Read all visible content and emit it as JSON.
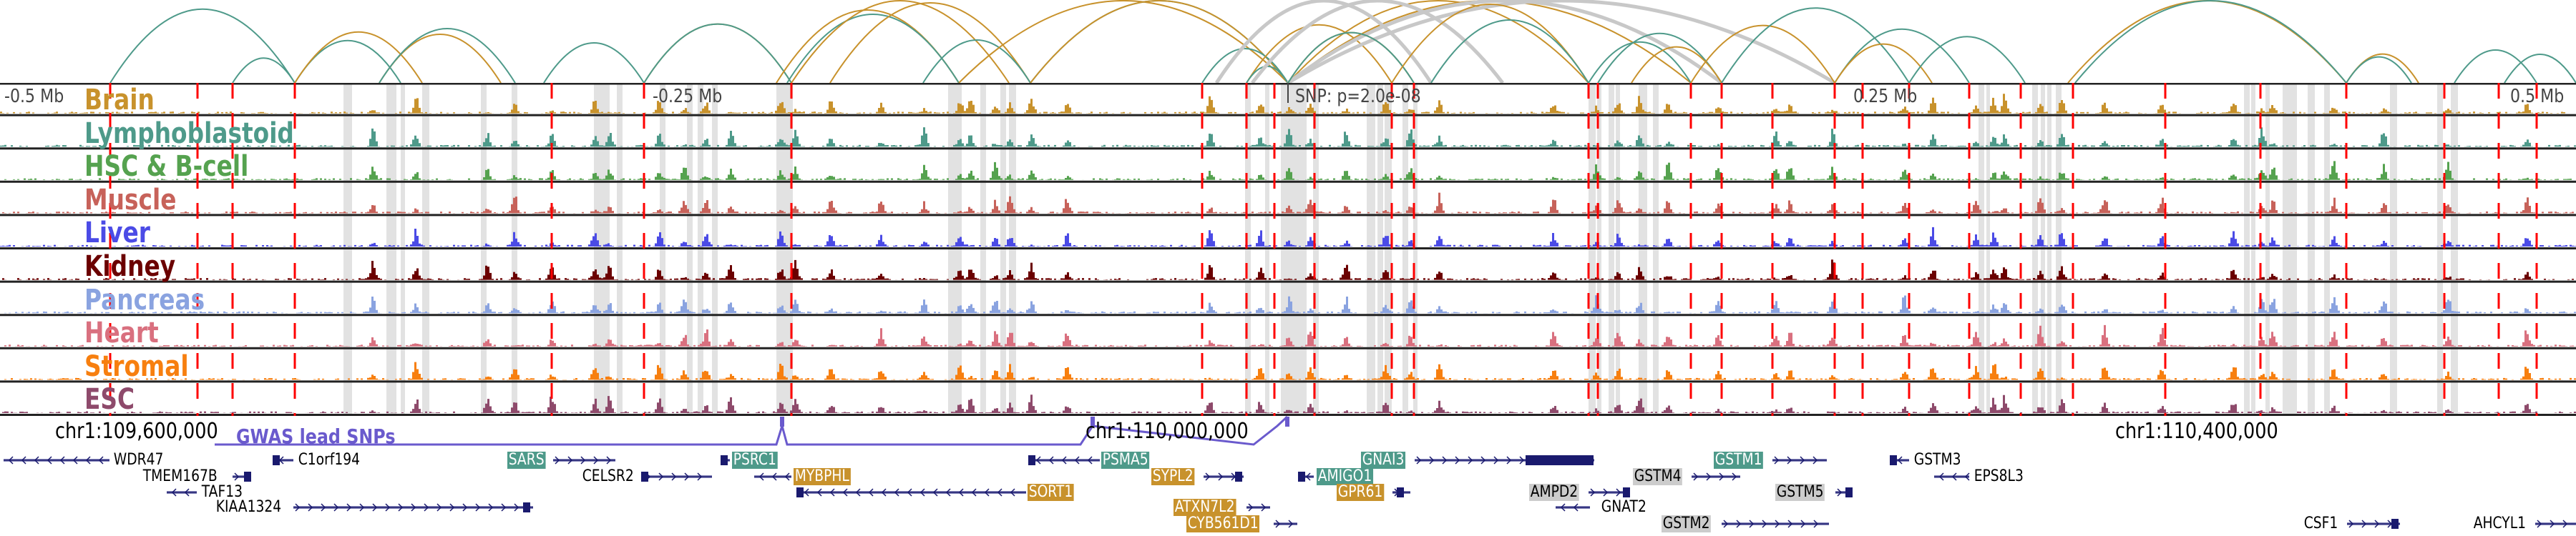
{
  "tracks": [
    {
      "name": "Brain",
      "color": "#c8922c"
    },
    {
      "name": "Lymphoblastoid",
      "color": "#4e9a8a"
    },
    {
      "name": "HSC & B-cell",
      "color": "#55a24f"
    },
    {
      "name": "Muscle",
      "color": "#c7625a"
    },
    {
      "name": "Liver",
      "color": "#4b4be6"
    },
    {
      "name": "Kidney",
      "color": "#6b0000"
    },
    {
      "name": "Pancreas",
      "color": "#8aa3e0"
    },
    {
      "name": "Heart",
      "color": "#d9707f"
    },
    {
      "name": "Stromal",
      "color": "#f77f0f"
    },
    {
      "name": "ESC",
      "color": "#8e4a6b"
    }
  ],
  "axis": {
    "labels": [
      "-0.5 Mb",
      "-0.25 Mb",
      "0.25 Mb",
      "0.5 Mb"
    ],
    "snp_label": "SNP: p=2.0e-08"
  },
  "chromosome": {
    "labels": [
      "chr1:109,600,000",
      "chr1:110,000,000",
      "chr1:110,400,000"
    ]
  },
  "gwas": {
    "label": "GWAS lead SNPs",
    "color": "#6a5acd"
  },
  "colors": {
    "teal": "#4e9a8a",
    "gold": "#c8922c",
    "gray": "#cccccc",
    "loop_gray": "#c8c8c8",
    "highlight_line": "#ff0000",
    "gene": "#1a1a6e"
  },
  "genes": [
    {
      "name": "WDR47",
      "style": "plain"
    },
    {
      "name": "C1orf194",
      "style": "plain"
    },
    {
      "name": "SARS",
      "style": "teal"
    },
    {
      "name": "PSRC1",
      "style": "teal"
    },
    {
      "name": "PSMA5",
      "style": "teal"
    },
    {
      "name": "GNAI3",
      "style": "teal"
    },
    {
      "name": "GSTM1",
      "style": "teal"
    },
    {
      "name": "GSTM3",
      "style": "plain"
    },
    {
      "name": "TMEM167B",
      "style": "plain"
    },
    {
      "name": "CELSR2",
      "style": "plain"
    },
    {
      "name": "MYBPHL",
      "style": "gold"
    },
    {
      "name": "SYPL2",
      "style": "gold"
    },
    {
      "name": "AMIGO1",
      "style": "teal"
    },
    {
      "name": "GSTM4",
      "style": "gray"
    },
    {
      "name": "EPS8L3",
      "style": "plain"
    },
    {
      "name": "TAF13",
      "style": "plain"
    },
    {
      "name": "SORT1",
      "style": "gold"
    },
    {
      "name": "GPR61",
      "style": "gold"
    },
    {
      "name": "AMPD2",
      "style": "gray"
    },
    {
      "name": "GSTM5",
      "style": "gray"
    },
    {
      "name": "KIAA1324",
      "style": "plain"
    },
    {
      "name": "ATXN7L2",
      "style": "gold"
    },
    {
      "name": "GNAT2",
      "style": "plain"
    },
    {
      "name": "CYB561D1",
      "style": "gold"
    },
    {
      "name": "GSTM2",
      "style": "gray"
    },
    {
      "name": "CSF1",
      "style": "plain"
    },
    {
      "name": "AHCYL1",
      "style": "plain"
    }
  ]
}
